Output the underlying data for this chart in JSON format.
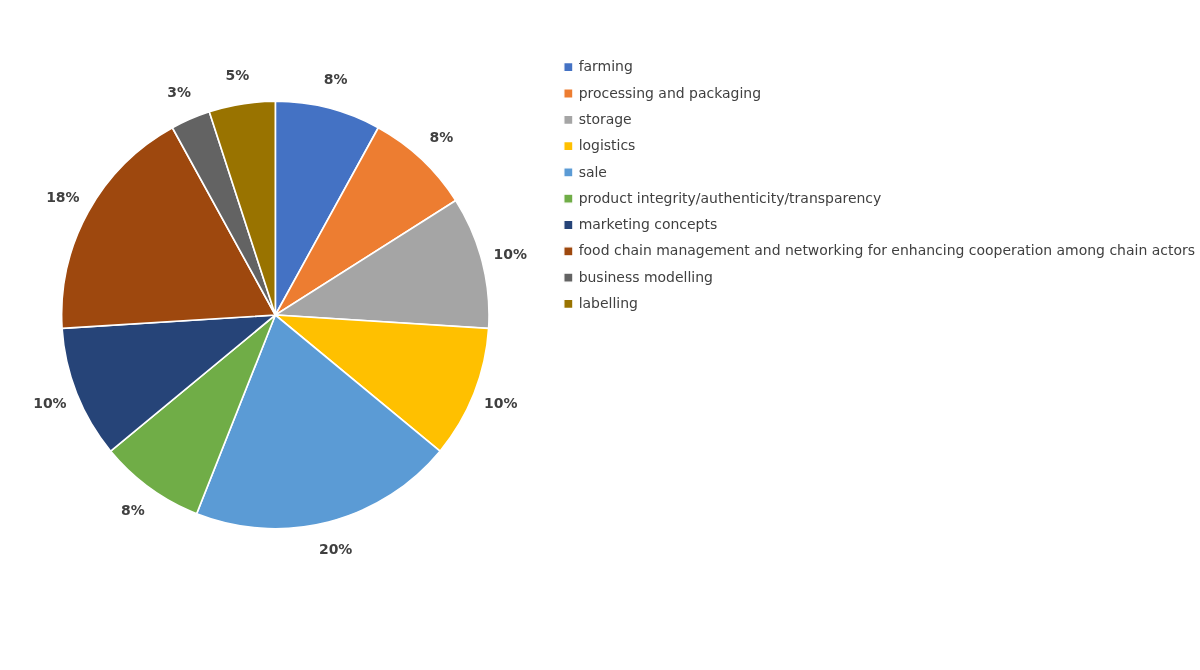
{
  "chart_data": {
    "type": "pie",
    "categories": [
      "farming",
      "processing and packaging",
      "storage",
      "logistics",
      "sale",
      "product integrity/authenticity/transparency",
      "marketing concepts",
      "food chain management and networking for enhancing cooperation among chain actors",
      "business modelling",
      "labelling"
    ],
    "values": [
      8,
      8,
      10,
      10,
      20,
      8,
      10,
      18,
      3,
      5
    ],
    "colors": [
      "#4472c4",
      "#ed7d31",
      "#a5a5a5",
      "#ffc000",
      "#5b9bd5",
      "#70ad47",
      "#264478",
      "#9e480e",
      "#636363",
      "#997300"
    ],
    "value_labels": [
      "8%",
      "8%",
      "10%",
      "10%",
      "20%",
      "8%",
      "10%",
      "18%",
      "3%",
      "5%"
    ],
    "legend": "right"
  }
}
